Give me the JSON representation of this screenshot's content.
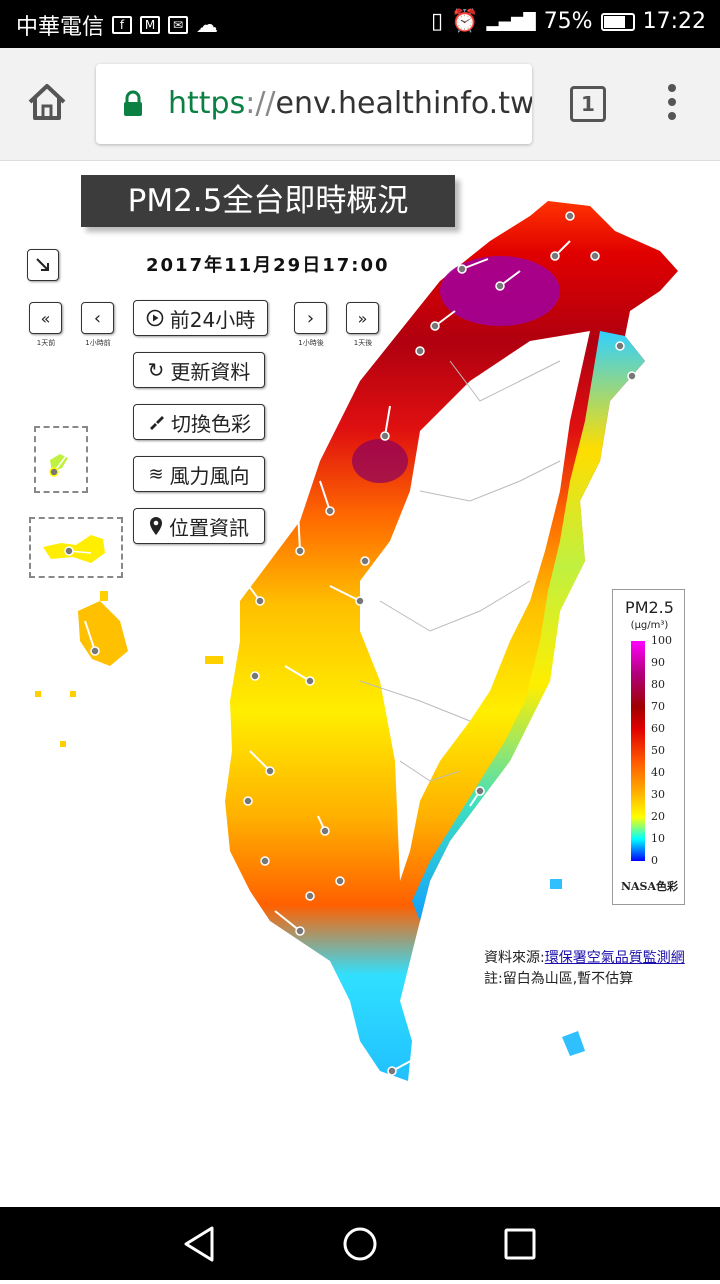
{
  "status_bar": {
    "carrier": "中華電信",
    "battery": "75%",
    "time": "17:22"
  },
  "browser": {
    "url_scheme": "https",
    "url_separator": "://",
    "url_host": "env.healthinfo.tw/",
    "tab_count": "1"
  },
  "page": {
    "title": "PM2.5全台即時概況",
    "datetime": "2017年11月29日17:00",
    "controls": {
      "prev_day_caption": "1天前",
      "prev_hour_caption": "1小時前",
      "play_24h_label": "前24小時",
      "next_hour_caption": "1小時後",
      "next_day_caption": "1天後",
      "refresh_label": "更新資料",
      "switch_color_label": "切換色彩",
      "wind_label": "風力風向",
      "location_label": "位置資訊"
    },
    "legend": {
      "title": "PM2.5",
      "unit": "(μg/m³)",
      "ticks": [
        "100",
        "90",
        "80",
        "70",
        "60",
        "50",
        "40",
        "30",
        "20",
        "10",
        "0"
      ],
      "footer": "NASA色彩"
    },
    "source_prefix": "資料來源:",
    "source_link": "環保署空氣品質監測網",
    "note": "註:留白為山區,暫不估算"
  },
  "colors": {
    "pm_low": "#0000ff",
    "pm_mid": "#ffff00",
    "pm_high": "#e00000",
    "pm_max": "#ff00ff",
    "secure_green": "#0b8043"
  }
}
